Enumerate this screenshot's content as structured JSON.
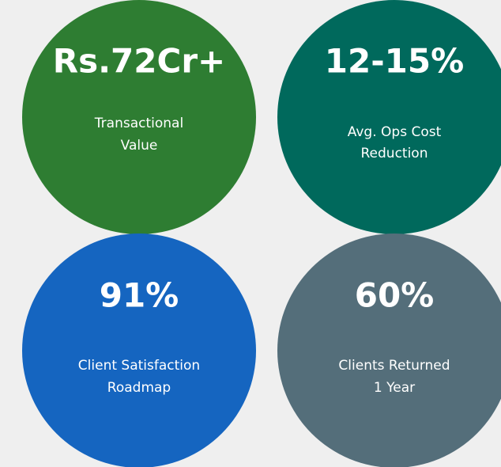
{
  "metrics": [
    {
      "value": "Rs.72Cr+",
      "label": [
        "Transactional",
        "Value"
      ]
    },
    {
      "value": "12-15%",
      "label": [
        "Avg. Ops Cost",
        "Reduction"
      ]
    },
    {
      "value": "91%",
      "label": [
        "Client Satisfaction",
        "Roadmap"
      ]
    },
    {
      "value": "60%",
      "label": [
        "Clients Returned",
        "1 Year"
      ]
    }
  ]
}
